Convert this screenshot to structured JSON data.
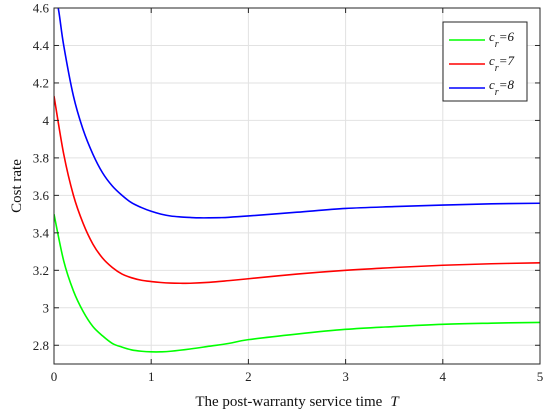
{
  "chart_data": {
    "type": "line",
    "title": "",
    "xlabel": "The post-warranty service time",
    "xlabel_symbol": "T",
    "ylabel": "Cost rate",
    "xlim": [
      0,
      5
    ],
    "ylim": [
      2.7,
      4.6
    ],
    "xticks": [
      "0",
      "1",
      "2",
      "3",
      "4",
      "5"
    ],
    "xtick_values": [
      0,
      1,
      2,
      3,
      4,
      5
    ],
    "yticks": [
      "2.8",
      "3",
      "3.2",
      "3.4",
      "3.6",
      "3.8",
      "4",
      "4.2",
      "4.4",
      "4.6"
    ],
    "ytick_values": [
      2.8,
      3.0,
      3.2,
      3.4,
      3.6,
      3.8,
      4.0,
      4.2,
      4.4,
      4.6
    ],
    "grid": true,
    "legend_position": "top-right",
    "series": [
      {
        "name": "c_r=6",
        "legend_base": "c",
        "legend_sub": "r",
        "legend_rest": "=6",
        "color": "#00ff00",
        "x": [
          0,
          0.1,
          0.2,
          0.3,
          0.4,
          0.5,
          0.6,
          0.7,
          0.8,
          0.9,
          1.0,
          1.1,
          1.2,
          1.4,
          1.6,
          1.8,
          2.0,
          2.5,
          3.0,
          3.5,
          4.0,
          4.5,
          5.0
        ],
        "y": [
          3.5,
          3.25,
          3.09,
          2.98,
          2.9,
          2.85,
          2.81,
          2.79,
          2.775,
          2.768,
          2.765,
          2.765,
          2.768,
          2.78,
          2.795,
          2.81,
          2.83,
          2.86,
          2.885,
          2.9,
          2.912,
          2.918,
          2.922
        ]
      },
      {
        "name": "c_r=7",
        "legend_base": "c",
        "legend_sub": "r",
        "legend_rest": "=7",
        "color": "#ff0000",
        "x": [
          0,
          0.1,
          0.2,
          0.3,
          0.4,
          0.5,
          0.6,
          0.7,
          0.8,
          0.9,
          1.0,
          1.1,
          1.2,
          1.3,
          1.4,
          1.6,
          1.8,
          2.0,
          2.5,
          3.0,
          3.5,
          4.0,
          4.5,
          5.0
        ],
        "y": [
          4.13,
          3.82,
          3.6,
          3.45,
          3.34,
          3.265,
          3.215,
          3.18,
          3.16,
          3.147,
          3.14,
          3.135,
          3.132,
          3.131,
          3.131,
          3.136,
          3.145,
          3.155,
          3.18,
          3.2,
          3.215,
          3.227,
          3.235,
          3.24
        ]
      },
      {
        "name": "c_r=8",
        "legend_base": "c",
        "legend_sub": "r",
        "legend_rest": "=8",
        "color": "#0000ff",
        "x": [
          0,
          0.05,
          0.1,
          0.2,
          0.3,
          0.4,
          0.5,
          0.6,
          0.7,
          0.8,
          0.9,
          1.0,
          1.1,
          1.2,
          1.3,
          1.4,
          1.5,
          1.6,
          1.7,
          1.8,
          2.0,
          2.5,
          3.0,
          3.5,
          4.0,
          4.5,
          5.0
        ],
        "y": [
          4.72,
          4.58,
          4.4,
          4.13,
          3.95,
          3.82,
          3.72,
          3.65,
          3.6,
          3.56,
          3.535,
          3.515,
          3.5,
          3.49,
          3.485,
          3.482,
          3.48,
          3.48,
          3.481,
          3.483,
          3.49,
          3.51,
          3.53,
          3.54,
          3.548,
          3.555,
          3.558
        ]
      }
    ]
  }
}
